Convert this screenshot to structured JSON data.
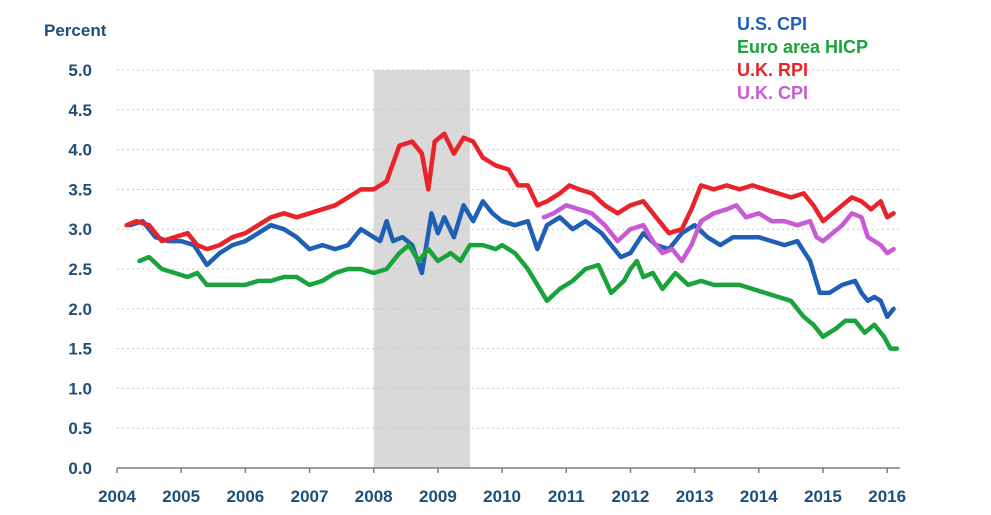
{
  "chart_data": {
    "type": "line",
    "title": "",
    "ylabel": "Percent",
    "xlabel": "",
    "xlim": [
      2004.0,
      2016.2
    ],
    "ylim": [
      0.0,
      5.0
    ],
    "y_ticks": [
      "0.0",
      "0.5",
      "1.0",
      "1.5",
      "2.0",
      "2.5",
      "3.0",
      "3.5",
      "4.0",
      "4.5",
      "5.0"
    ],
    "x_ticks": [
      "2004",
      "2005",
      "2006",
      "2007",
      "2008",
      "2009",
      "2010",
      "2011",
      "2012",
      "2013",
      "2014",
      "2015",
      "2016"
    ],
    "grid": "horizontal dotted",
    "legend_position": "top-right",
    "shaded_region": [
      2008.0,
      2009.5
    ],
    "series": [
      {
        "name": "U.S. CPI",
        "color": "#1f5fb5",
        "points": [
          [
            2004.2,
            3.05
          ],
          [
            2004.4,
            3.1
          ],
          [
            2004.6,
            2.9
          ],
          [
            2004.8,
            2.85
          ],
          [
            2005.0,
            2.85
          ],
          [
            2005.2,
            2.8
          ],
          [
            2005.4,
            2.55
          ],
          [
            2005.6,
            2.7
          ],
          [
            2005.8,
            2.8
          ],
          [
            2006.0,
            2.85
          ],
          [
            2006.2,
            2.95
          ],
          [
            2006.4,
            3.05
          ],
          [
            2006.6,
            3.0
          ],
          [
            2006.8,
            2.9
          ],
          [
            2007.0,
            2.75
          ],
          [
            2007.2,
            2.8
          ],
          [
            2007.4,
            2.75
          ],
          [
            2007.6,
            2.8
          ],
          [
            2007.8,
            3.0
          ],
          [
            2008.0,
            2.9
          ],
          [
            2008.1,
            2.85
          ],
          [
            2008.2,
            3.1
          ],
          [
            2008.3,
            2.85
          ],
          [
            2008.45,
            2.9
          ],
          [
            2008.6,
            2.8
          ],
          [
            2008.75,
            2.45
          ],
          [
            2008.9,
            3.2
          ],
          [
            2009.0,
            2.95
          ],
          [
            2009.1,
            3.15
          ],
          [
            2009.25,
            2.9
          ],
          [
            2009.4,
            3.3
          ],
          [
            2009.55,
            3.1
          ],
          [
            2009.7,
            3.35
          ],
          [
            2009.85,
            3.2
          ],
          [
            2010.0,
            3.1
          ],
          [
            2010.2,
            3.05
          ],
          [
            2010.4,
            3.1
          ],
          [
            2010.55,
            2.75
          ],
          [
            2010.7,
            3.05
          ],
          [
            2010.9,
            3.15
          ],
          [
            2011.1,
            3.0
          ],
          [
            2011.3,
            3.1
          ],
          [
            2011.55,
            2.95
          ],
          [
            2011.7,
            2.8
          ],
          [
            2011.85,
            2.65
          ],
          [
            2012.0,
            2.7
          ],
          [
            2012.2,
            2.95
          ],
          [
            2012.4,
            2.8
          ],
          [
            2012.6,
            2.75
          ],
          [
            2012.8,
            2.95
          ],
          [
            2013.0,
            3.05
          ],
          [
            2013.2,
            2.9
          ],
          [
            2013.4,
            2.8
          ],
          [
            2013.6,
            2.9
          ],
          [
            2013.8,
            2.9
          ],
          [
            2014.0,
            2.9
          ],
          [
            2014.2,
            2.85
          ],
          [
            2014.4,
            2.8
          ],
          [
            2014.6,
            2.85
          ],
          [
            2014.8,
            2.6
          ],
          [
            2014.95,
            2.2
          ],
          [
            2015.1,
            2.2
          ],
          [
            2015.3,
            2.3
          ],
          [
            2015.5,
            2.35
          ],
          [
            2015.6,
            2.2
          ],
          [
            2015.7,
            2.1
          ],
          [
            2015.8,
            2.15
          ],
          [
            2015.9,
            2.1
          ],
          [
            2016.0,
            1.9
          ],
          [
            2016.1,
            2.0
          ]
        ]
      },
      {
        "name": "Euro area HICP",
        "color": "#1aa33a",
        "points": [
          [
            2004.35,
            2.6
          ],
          [
            2004.5,
            2.65
          ],
          [
            2004.7,
            2.5
          ],
          [
            2004.9,
            2.45
          ],
          [
            2005.1,
            2.4
          ],
          [
            2005.25,
            2.45
          ],
          [
            2005.4,
            2.3
          ],
          [
            2005.6,
            2.3
          ],
          [
            2005.8,
            2.3
          ],
          [
            2006.0,
            2.3
          ],
          [
            2006.2,
            2.35
          ],
          [
            2006.4,
            2.35
          ],
          [
            2006.6,
            2.4
          ],
          [
            2006.8,
            2.4
          ],
          [
            2007.0,
            2.3
          ],
          [
            2007.2,
            2.35
          ],
          [
            2007.4,
            2.45
          ],
          [
            2007.6,
            2.5
          ],
          [
            2007.8,
            2.5
          ],
          [
            2008.0,
            2.45
          ],
          [
            2008.2,
            2.5
          ],
          [
            2008.4,
            2.7
          ],
          [
            2008.55,
            2.8
          ],
          [
            2008.7,
            2.6
          ],
          [
            2008.85,
            2.75
          ],
          [
            2009.0,
            2.6
          ],
          [
            2009.2,
            2.7
          ],
          [
            2009.35,
            2.6
          ],
          [
            2009.5,
            2.8
          ],
          [
            2009.7,
            2.8
          ],
          [
            2009.9,
            2.75
          ],
          [
            2010.0,
            2.8
          ],
          [
            2010.2,
            2.7
          ],
          [
            2010.4,
            2.5
          ],
          [
            2010.55,
            2.3
          ],
          [
            2010.7,
            2.1
          ],
          [
            2010.9,
            2.25
          ],
          [
            2011.1,
            2.35
          ],
          [
            2011.3,
            2.5
          ],
          [
            2011.5,
            2.55
          ],
          [
            2011.7,
            2.2
          ],
          [
            2011.9,
            2.35
          ],
          [
            2012.0,
            2.5
          ],
          [
            2012.1,
            2.6
          ],
          [
            2012.2,
            2.4
          ],
          [
            2012.35,
            2.45
          ],
          [
            2012.5,
            2.25
          ],
          [
            2012.7,
            2.45
          ],
          [
            2012.9,
            2.3
          ],
          [
            2013.1,
            2.35
          ],
          [
            2013.3,
            2.3
          ],
          [
            2013.5,
            2.3
          ],
          [
            2013.7,
            2.3
          ],
          [
            2013.9,
            2.25
          ],
          [
            2014.1,
            2.2
          ],
          [
            2014.3,
            2.15
          ],
          [
            2014.5,
            2.1
          ],
          [
            2014.7,
            1.9
          ],
          [
            2014.85,
            1.8
          ],
          [
            2015.0,
            1.65
          ],
          [
            2015.2,
            1.75
          ],
          [
            2015.35,
            1.85
          ],
          [
            2015.5,
            1.85
          ],
          [
            2015.65,
            1.7
          ],
          [
            2015.8,
            1.8
          ],
          [
            2015.95,
            1.65
          ],
          [
            2016.05,
            1.5
          ],
          [
            2016.15,
            1.5
          ]
        ]
      },
      {
        "name": "U.K. RPI",
        "color": "#e8232a",
        "points": [
          [
            2004.15,
            3.05
          ],
          [
            2004.3,
            3.1
          ],
          [
            2004.5,
            3.05
          ],
          [
            2004.7,
            2.85
          ],
          [
            2004.9,
            2.9
          ],
          [
            2005.1,
            2.95
          ],
          [
            2005.25,
            2.8
          ],
          [
            2005.4,
            2.75
          ],
          [
            2005.6,
            2.8
          ],
          [
            2005.8,
            2.9
          ],
          [
            2006.0,
            2.95
          ],
          [
            2006.2,
            3.05
          ],
          [
            2006.4,
            3.15
          ],
          [
            2006.6,
            3.2
          ],
          [
            2006.8,
            3.15
          ],
          [
            2007.0,
            3.2
          ],
          [
            2007.2,
            3.25
          ],
          [
            2007.4,
            3.3
          ],
          [
            2007.6,
            3.4
          ],
          [
            2007.8,
            3.5
          ],
          [
            2008.0,
            3.5
          ],
          [
            2008.2,
            3.6
          ],
          [
            2008.4,
            4.05
          ],
          [
            2008.6,
            4.1
          ],
          [
            2008.75,
            3.95
          ],
          [
            2008.85,
            3.5
          ],
          [
            2008.95,
            4.1
          ],
          [
            2009.1,
            4.2
          ],
          [
            2009.25,
            3.95
          ],
          [
            2009.4,
            4.15
          ],
          [
            2009.55,
            4.1
          ],
          [
            2009.7,
            3.9
          ],
          [
            2009.9,
            3.8
          ],
          [
            2010.1,
            3.75
          ],
          [
            2010.25,
            3.55
          ],
          [
            2010.4,
            3.55
          ],
          [
            2010.55,
            3.3
          ],
          [
            2010.7,
            3.35
          ],
          [
            2010.9,
            3.45
          ],
          [
            2011.05,
            3.55
          ],
          [
            2011.2,
            3.5
          ],
          [
            2011.4,
            3.45
          ],
          [
            2011.6,
            3.3
          ],
          [
            2011.8,
            3.2
          ],
          [
            2012.0,
            3.3
          ],
          [
            2012.2,
            3.35
          ],
          [
            2012.4,
            3.15
          ],
          [
            2012.6,
            2.95
          ],
          [
            2012.8,
            3.0
          ],
          [
            2012.95,
            3.25
          ],
          [
            2013.1,
            3.55
          ],
          [
            2013.3,
            3.5
          ],
          [
            2013.5,
            3.55
          ],
          [
            2013.7,
            3.5
          ],
          [
            2013.9,
            3.55
          ],
          [
            2014.1,
            3.5
          ],
          [
            2014.3,
            3.45
          ],
          [
            2014.5,
            3.4
          ],
          [
            2014.7,
            3.45
          ],
          [
            2014.85,
            3.3
          ],
          [
            2015.0,
            3.1
          ],
          [
            2015.15,
            3.2
          ],
          [
            2015.3,
            3.3
          ],
          [
            2015.45,
            3.4
          ],
          [
            2015.6,
            3.35
          ],
          [
            2015.75,
            3.25
          ],
          [
            2015.9,
            3.35
          ],
          [
            2016.0,
            3.15
          ],
          [
            2016.1,
            3.2
          ]
        ]
      },
      {
        "name": "U.K. CPI",
        "color": "#c75bd4",
        "points": [
          [
            2010.65,
            3.15
          ],
          [
            2010.8,
            3.2
          ],
          [
            2011.0,
            3.3
          ],
          [
            2011.2,
            3.25
          ],
          [
            2011.4,
            3.2
          ],
          [
            2011.6,
            3.05
          ],
          [
            2011.8,
            2.85
          ],
          [
            2012.0,
            3.0
          ],
          [
            2012.2,
            3.05
          ],
          [
            2012.35,
            2.85
          ],
          [
            2012.5,
            2.7
          ],
          [
            2012.65,
            2.75
          ],
          [
            2012.8,
            2.6
          ],
          [
            2012.95,
            2.8
          ],
          [
            2013.1,
            3.1
          ],
          [
            2013.3,
            3.2
          ],
          [
            2013.5,
            3.25
          ],
          [
            2013.65,
            3.3
          ],
          [
            2013.8,
            3.15
          ],
          [
            2014.0,
            3.2
          ],
          [
            2014.2,
            3.1
          ],
          [
            2014.4,
            3.1
          ],
          [
            2014.6,
            3.05
          ],
          [
            2014.8,
            3.1
          ],
          [
            2014.9,
            2.9
          ],
          [
            2015.0,
            2.85
          ],
          [
            2015.15,
            2.95
          ],
          [
            2015.3,
            3.05
          ],
          [
            2015.45,
            3.2
          ],
          [
            2015.6,
            3.15
          ],
          [
            2015.7,
            2.9
          ],
          [
            2015.8,
            2.85
          ],
          [
            2015.9,
            2.8
          ],
          [
            2016.0,
            2.7
          ],
          [
            2016.1,
            2.75
          ]
        ]
      }
    ]
  }
}
